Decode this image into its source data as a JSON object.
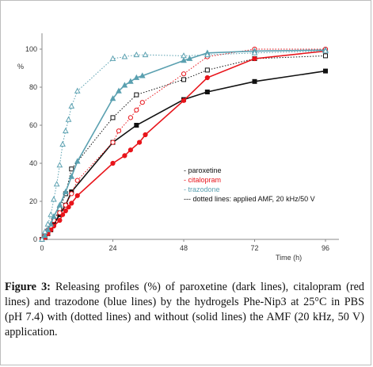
{
  "chart_data": {
    "type": "line",
    "title": "",
    "xlabel": "Time (h)",
    "ylabel": "%",
    "xlim": [
      0,
      96
    ],
    "ylim": [
      0,
      100
    ],
    "xticks": [
      "0",
      "24",
      "48",
      "72",
      "96"
    ],
    "yticks": [
      "0",
      "20",
      "40",
      "60",
      "80",
      "100"
    ],
    "grid": false,
    "legend_position": "inside lower-right",
    "legend": [
      {
        "label": "- paroxetine",
        "color": "#111111"
      },
      {
        "label": "- citalopram",
        "color": "#e8141a"
      },
      {
        "label": "- trazodone",
        "color": "#5aa0b0"
      },
      {
        "label": "--- dotted lines: applied AMF, 20 kHz/50 V",
        "color": "#111111"
      }
    ],
    "series": [
      {
        "drug": "paroxetine",
        "style": "solid",
        "marker": "filled-square",
        "color": "#111111",
        "x": [
          0,
          1,
          2,
          3,
          4,
          6,
          8,
          10,
          24,
          32,
          48,
          56,
          72,
          96
        ],
        "y": [
          0,
          1,
          3,
          5,
          8,
          13,
          18,
          25,
          51,
          60,
          73.5,
          77.5,
          83,
          88.5
        ]
      },
      {
        "drug": "paroxetine",
        "style": "dotted",
        "marker": "open-square",
        "color": "#111111",
        "x": [
          0,
          1,
          2,
          3,
          4,
          6,
          8,
          10,
          24,
          32,
          48,
          56,
          72,
          96
        ],
        "y": [
          0,
          2,
          4,
          7,
          10,
          16,
          24,
          37,
          64,
          76,
          84,
          89,
          95,
          96.5
        ]
      },
      {
        "drug": "citalopram",
        "style": "solid",
        "marker": "filled-circle",
        "color": "#e8141a",
        "x": [
          0,
          1,
          2,
          3,
          4,
          6,
          7,
          8,
          9,
          10,
          12,
          24,
          28,
          30,
          33,
          35,
          48,
          56,
          72,
          96
        ],
        "y": [
          0,
          1,
          3,
          5,
          7,
          10,
          13,
          15,
          17,
          19,
          23,
          40,
          44,
          47,
          51,
          55,
          73,
          85,
          95,
          99
        ]
      },
      {
        "drug": "citalopram",
        "style": "dotted",
        "marker": "open-circle",
        "color": "#e8141a",
        "x": [
          0,
          1,
          2,
          3,
          4,
          6,
          8,
          10,
          12,
          24,
          26,
          30,
          32,
          34,
          48,
          56,
          72,
          96
        ],
        "y": [
          0,
          2,
          5,
          7,
          10,
          14,
          18,
          24,
          31,
          51,
          57,
          64,
          68,
          72,
          87,
          96,
          100,
          100
        ]
      },
      {
        "drug": "trazodone",
        "style": "solid",
        "marker": "filled-triangle",
        "color": "#5aa0b0",
        "x": [
          0,
          1,
          2,
          3,
          4,
          6,
          8,
          10,
          12,
          24,
          26,
          28,
          30,
          32,
          34,
          48,
          50,
          56,
          72,
          96
        ],
        "y": [
          0,
          2,
          5,
          8,
          12,
          18,
          25,
          33,
          41,
          74,
          78,
          81,
          83,
          85,
          86,
          94,
          95,
          98,
          99,
          99.5
        ]
      },
      {
        "drug": "trazodone",
        "style": "dotted",
        "marker": "open-triangle",
        "color": "#5aa0b0",
        "x": [
          0,
          1,
          2,
          3,
          4,
          5,
          6,
          7,
          8,
          9,
          10,
          12,
          24,
          28,
          32,
          35,
          48,
          56,
          72,
          96
        ],
        "y": [
          0,
          4,
          8,
          13,
          21,
          29,
          39,
          50,
          57,
          63,
          70,
          78,
          95,
          96,
          97,
          97,
          96.5,
          97,
          98,
          99
        ]
      }
    ]
  },
  "caption": {
    "label": "Figure 3:",
    "text": " Releasing profiles (%) of paroxetine (dark lines), citalopram (red lines) and trazodone (blue lines) by the hydrogels Phe-Nip3 at 25°C in PBS (pH 7.4) with (dotted lines) and without (solid lines) the AMF (20 kHz, 50 V) application."
  }
}
